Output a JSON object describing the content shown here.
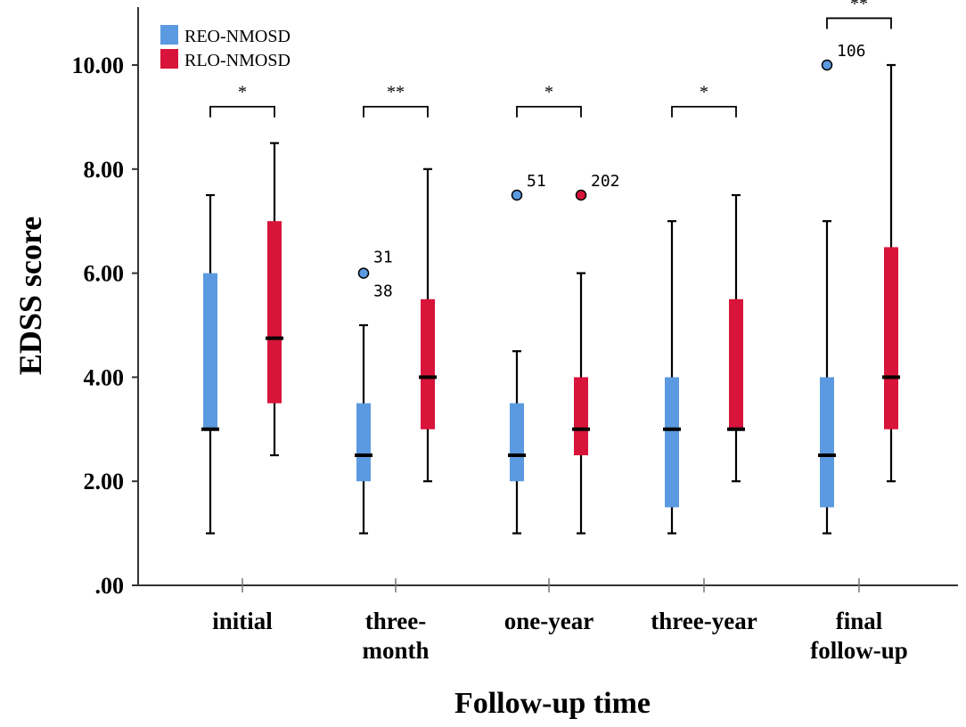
{
  "chart_data": {
    "type": "boxplot",
    "title": "",
    "xlabel": "Follow-up time",
    "ylabel": "EDSS score",
    "ylim": [
      0,
      11
    ],
    "yticks": [
      ".00",
      "2.00",
      "4.00",
      "6.00",
      "8.00",
      "10.00"
    ],
    "ytick_values": [
      0,
      2,
      4,
      6,
      8,
      10
    ],
    "categories": [
      [
        "initial"
      ],
      [
        "three-",
        "month"
      ],
      [
        "one-year"
      ],
      [
        "three-year"
      ],
      [
        "final",
        "follow-up"
      ]
    ],
    "legend": {
      "position": "top-left",
      "entries": [
        {
          "label": "REO-NMOSD",
          "color": "#5b9ae0"
        },
        {
          "label": "RLO-NMOSD",
          "color": "#d8143a"
        }
      ]
    },
    "series": [
      {
        "name": "REO-NMOSD",
        "color": "#5b9ae0",
        "boxes": [
          {
            "min": 1,
            "q1": 3,
            "median": 3,
            "q3": 6,
            "max": 7.5
          },
          {
            "min": 1,
            "q1": 2,
            "median": 2.5,
            "q3": 3.5,
            "max": 5
          },
          {
            "min": 1,
            "q1": 2,
            "median": 2.5,
            "q3": 3.5,
            "max": 4.5
          },
          {
            "min": 1,
            "q1": 1.5,
            "median": 3,
            "q3": 4,
            "max": 7
          },
          {
            "min": 1,
            "q1": 1.5,
            "median": 2.5,
            "q3": 4,
            "max": 7
          }
        ]
      },
      {
        "name": "RLO-NMOSD",
        "color": "#d8143a",
        "boxes": [
          {
            "min": 2.5,
            "q1": 3.5,
            "median": 4.75,
            "q3": 7,
            "max": 8.5
          },
          {
            "min": 2,
            "q1": 3,
            "median": 4,
            "q3": 5.5,
            "max": 8
          },
          {
            "min": 1,
            "q1": 2.5,
            "median": 3,
            "q3": 4,
            "max": 6
          },
          {
            "min": 2,
            "q1": 3,
            "median": 3,
            "q3": 5.5,
            "max": 7.5
          },
          {
            "min": 2,
            "q1": 3,
            "median": 4,
            "q3": 6.5,
            "max": 10
          }
        ]
      }
    ],
    "outliers": [
      {
        "category": 1,
        "series": 0,
        "value": 6,
        "labels": [
          "31",
          "38"
        ]
      },
      {
        "category": 2,
        "series": 0,
        "value": 7.5,
        "labels": [
          "51"
        ]
      },
      {
        "category": 2,
        "series": 1,
        "value": 7.5,
        "labels": [
          "202"
        ]
      },
      {
        "category": 4,
        "series": 0,
        "value": 10,
        "labels": [
          "106"
        ]
      }
    ],
    "significance": [
      {
        "category": 0,
        "label": "*",
        "value": 9.2
      },
      {
        "category": 1,
        "label": "**",
        "value": 9.2
      },
      {
        "category": 2,
        "label": "*",
        "value": 9.2
      },
      {
        "category": 3,
        "label": "*",
        "value": 9.2
      },
      {
        "category": 4,
        "label": "**",
        "value": 10.9
      }
    ]
  }
}
